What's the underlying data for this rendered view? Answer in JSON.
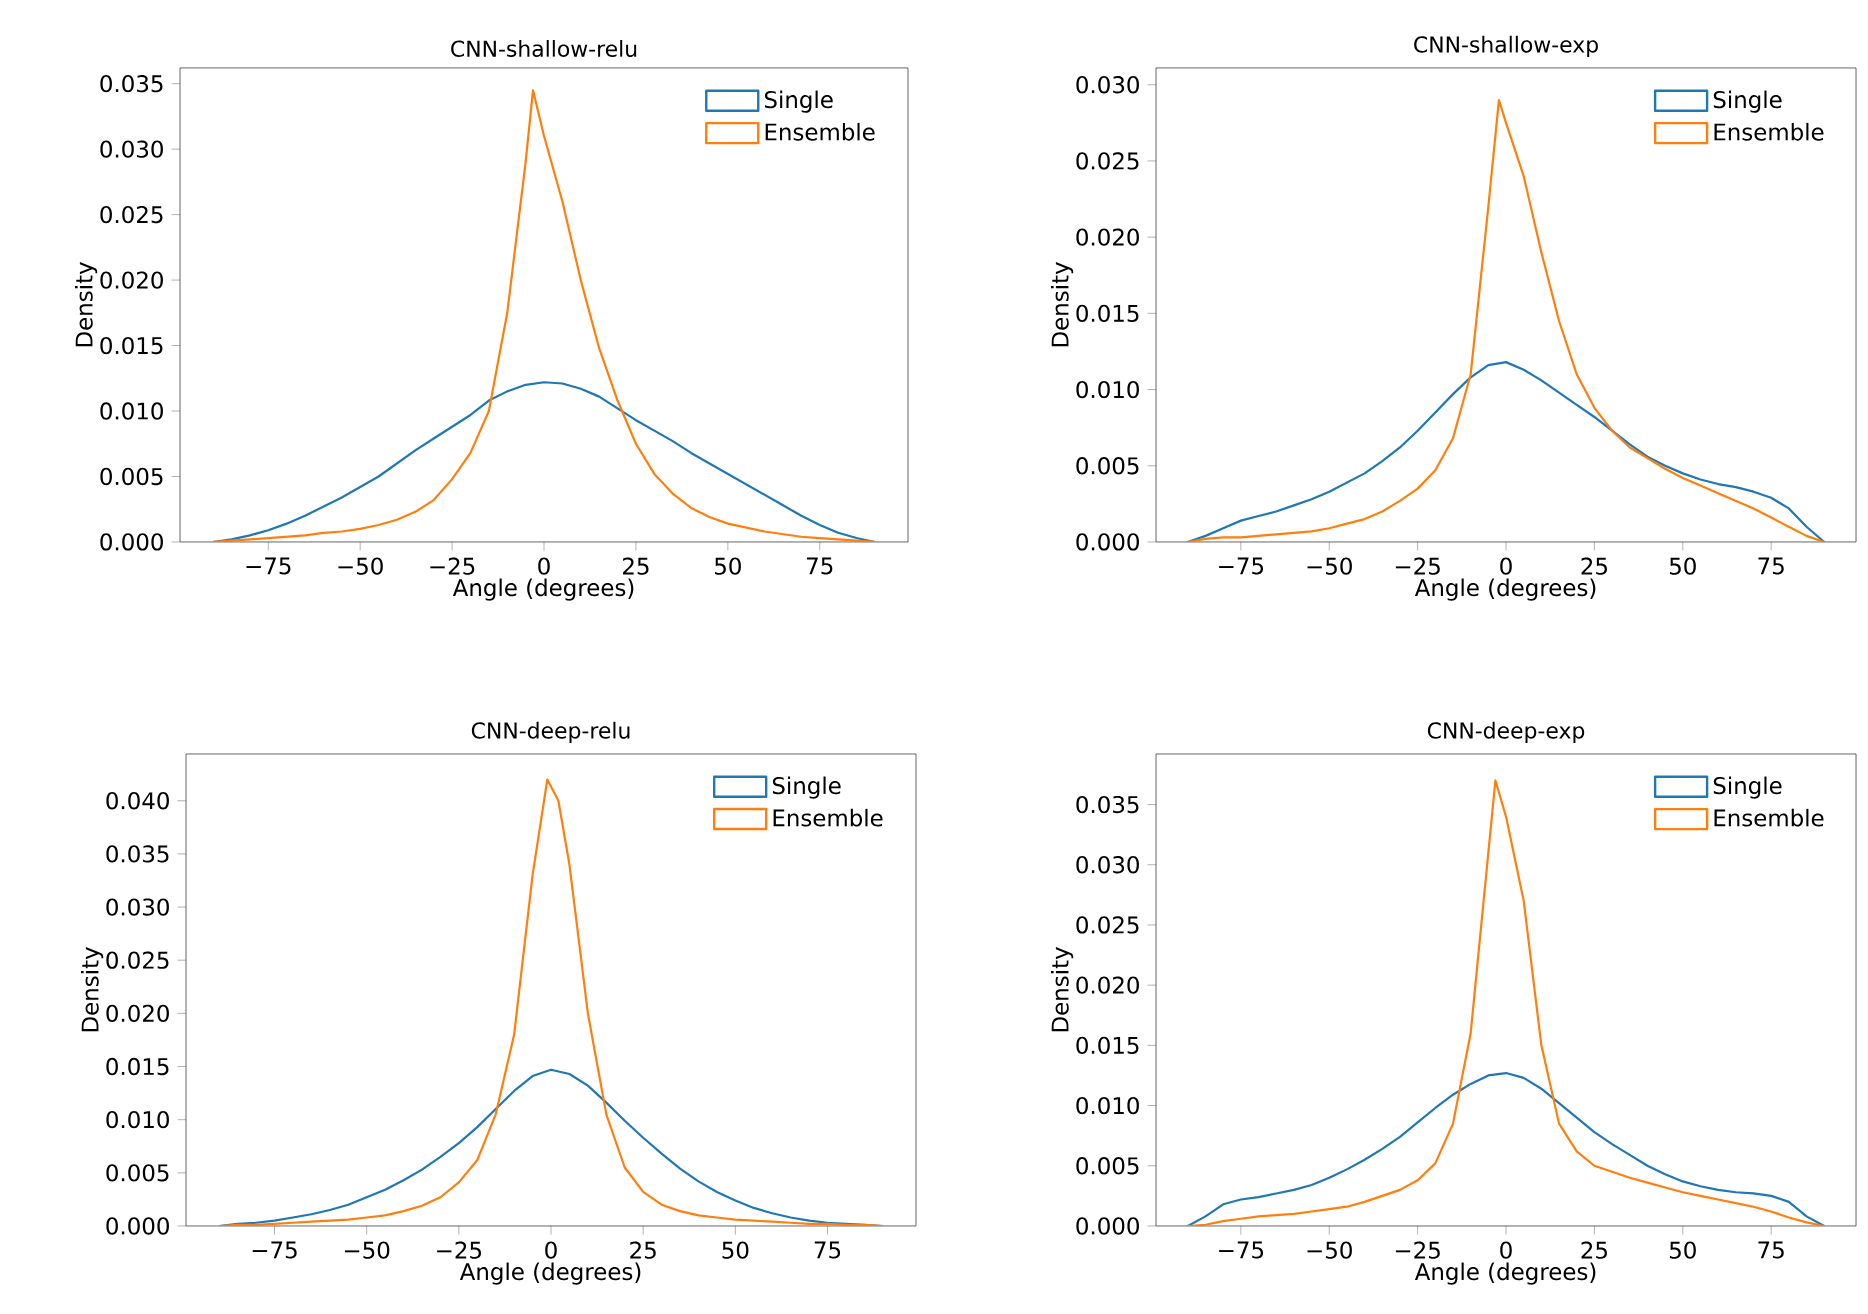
{
  "chart_data": [
    {
      "type": "line",
      "title": "CNN-shallow-relu",
      "xlabel": "Angle (degrees)",
      "ylabel": "Density",
      "legend": "top right",
      "grid": false,
      "marker": "none",
      "line_style": "solid",
      "xlim": [
        -99,
        99
      ],
      "ylim": [
        0,
        0.0362
      ],
      "xticks": [
        {
          "value": -75,
          "label": "−75"
        },
        {
          "value": -50,
          "label": "−50"
        },
        {
          "value": -25,
          "label": "−25"
        },
        0,
        25,
        50,
        75
      ],
      "yticks": [
        {
          "value": 0,
          "label": "0.000"
        },
        {
          "value": 0.005,
          "label": "0.005"
        },
        {
          "value": 0.01,
          "label": "0.010"
        },
        {
          "value": 0.015,
          "label": "0.015"
        },
        {
          "value": 0.02,
          "label": "0.020"
        },
        {
          "value": 0.025,
          "label": "0.025"
        },
        {
          "value": 0.03,
          "label": "0.030"
        },
        {
          "value": 0.035,
          "label": "0.035"
        }
      ],
      "series": [
        {
          "name": "Single",
          "color": "#1f77b4",
          "x": [
            -90,
            -85,
            -80,
            -75,
            -70,
            -65,
            -60,
            -55,
            -50,
            -45,
            -40,
            -35,
            -30,
            -25,
            -20,
            -15,
            -10,
            -5,
            0,
            5,
            10,
            15,
            20,
            25,
            30,
            35,
            40,
            45,
            50,
            55,
            60,
            65,
            70,
            75,
            80,
            85,
            90
          ],
          "values": [
            0,
            0.0002,
            0.0005,
            0.0009,
            0.0014,
            0.002,
            0.0027,
            0.0034,
            0.0042,
            0.005,
            0.006,
            0.007,
            0.0079,
            0.0088,
            0.0097,
            0.0108,
            0.0115,
            0.012,
            0.0122,
            0.0121,
            0.0117,
            0.0111,
            0.0102,
            0.0093,
            0.0085,
            0.0077,
            0.0068,
            0.006,
            0.0052,
            0.0044,
            0.0036,
            0.0028,
            0.002,
            0.0013,
            0.0007,
            0.0003,
            0
          ]
        },
        {
          "name": "Ensemble",
          "color": "#ff7f0e",
          "x": [
            -90,
            -85,
            -80,
            -75,
            -70,
            -65,
            -60,
            -55,
            -50,
            -45,
            -40,
            -35,
            -30,
            -25,
            -20,
            -15,
            -10,
            -5,
            -3,
            0,
            5,
            10,
            15,
            20,
            25,
            30,
            35,
            40,
            45,
            50,
            55,
            60,
            65,
            70,
            75,
            80,
            85,
            90
          ],
          "values": [
            0,
            0.0001,
            0.0002,
            0.0003,
            0.0004,
            0.0005,
            0.0007,
            0.0008,
            0.001,
            0.0013,
            0.0017,
            0.0023,
            0.0032,
            0.0048,
            0.0068,
            0.01,
            0.0175,
            0.029,
            0.0345,
            0.031,
            0.026,
            0.02,
            0.0148,
            0.0108,
            0.0075,
            0.0052,
            0.0037,
            0.0026,
            0.0019,
            0.0014,
            0.0011,
            0.0008,
            0.0006,
            0.0004,
            0.0003,
            0.0002,
            0.0001,
            0
          ]
        }
      ]
    },
    {
      "type": "line",
      "title": "CNN-shallow-exp",
      "xlabel": "Angle (degrees)",
      "ylabel": "Density",
      "legend": "top right",
      "grid": false,
      "marker": "none",
      "line_style": "solid",
      "xlim": [
        -99,
        99
      ],
      "ylim": [
        0,
        0.0311
      ],
      "xticks": [
        {
          "value": -75,
          "label": "−75"
        },
        {
          "value": -50,
          "label": "−50"
        },
        {
          "value": -25,
          "label": "−25"
        },
        0,
        25,
        50,
        75
      ],
      "yticks": [
        {
          "value": 0,
          "label": "0.000"
        },
        {
          "value": 0.005,
          "label": "0.005"
        },
        {
          "value": 0.01,
          "label": "0.010"
        },
        {
          "value": 0.015,
          "label": "0.015"
        },
        {
          "value": 0.02,
          "label": "0.020"
        },
        {
          "value": 0.025,
          "label": "0.025"
        },
        {
          "value": 0.03,
          "label": "0.030"
        }
      ],
      "series": [
        {
          "name": "Single",
          "color": "#1f77b4",
          "x": [
            -90,
            -85,
            -80,
            -75,
            -70,
            -65,
            -60,
            -55,
            -50,
            -45,
            -40,
            -35,
            -30,
            -25,
            -20,
            -15,
            -10,
            -5,
            0,
            5,
            10,
            15,
            20,
            25,
            30,
            35,
            40,
            45,
            50,
            55,
            60,
            65,
            70,
            75,
            80,
            85,
            90
          ],
          "values": [
            0,
            0.0004,
            0.0009,
            0.0014,
            0.0017,
            0.002,
            0.0024,
            0.0028,
            0.0033,
            0.0039,
            0.0045,
            0.0053,
            0.0062,
            0.0073,
            0.0085,
            0.0097,
            0.0108,
            0.0116,
            0.0118,
            0.0113,
            0.0106,
            0.0098,
            0.009,
            0.0082,
            0.0073,
            0.0064,
            0.0056,
            0.005,
            0.0045,
            0.0041,
            0.0038,
            0.0036,
            0.0033,
            0.0029,
            0.0022,
            0.001,
            0
          ]
        },
        {
          "name": "Ensemble",
          "color": "#ff7f0e",
          "x": [
            -90,
            -85,
            -80,
            -75,
            -70,
            -65,
            -60,
            -55,
            -50,
            -45,
            -40,
            -35,
            -30,
            -25,
            -20,
            -15,
            -10,
            -5,
            -2,
            0,
            5,
            10,
            15,
            20,
            25,
            30,
            35,
            40,
            45,
            50,
            55,
            60,
            65,
            70,
            75,
            80,
            85,
            90
          ],
          "values": [
            0,
            0.0002,
            0.0003,
            0.0003,
            0.0004,
            0.0005,
            0.0006,
            0.0007,
            0.0009,
            0.0012,
            0.0015,
            0.002,
            0.0027,
            0.0035,
            0.0047,
            0.0068,
            0.011,
            0.022,
            0.029,
            0.0275,
            0.024,
            0.019,
            0.0145,
            0.011,
            0.0088,
            0.0073,
            0.0062,
            0.0055,
            0.0048,
            0.0042,
            0.0037,
            0.0032,
            0.0027,
            0.0022,
            0.0016,
            0.001,
            0.0004,
            0
          ]
        }
      ]
    },
    {
      "type": "line",
      "title": "CNN-deep-relu",
      "xlabel": "Angle (degrees)",
      "ylabel": "Density",
      "legend": "top right",
      "grid": false,
      "marker": "none",
      "line_style": "solid",
      "xlim": [
        -99,
        99
      ],
      "ylim": [
        0,
        0.0444
      ],
      "xticks": [
        {
          "value": -75,
          "label": "−75"
        },
        {
          "value": -50,
          "label": "−50"
        },
        {
          "value": -25,
          "label": "−25"
        },
        0,
        25,
        50,
        75
      ],
      "yticks": [
        {
          "value": 0,
          "label": "0.000"
        },
        {
          "value": 0.005,
          "label": "0.005"
        },
        {
          "value": 0.01,
          "label": "0.010"
        },
        {
          "value": 0.015,
          "label": "0.015"
        },
        {
          "value": 0.02,
          "label": "0.020"
        },
        {
          "value": 0.025,
          "label": "0.025"
        },
        {
          "value": 0.03,
          "label": "0.030"
        },
        {
          "value": 0.035,
          "label": "0.035"
        },
        {
          "value": 0.04,
          "label": "0.040"
        }
      ],
      "series": [
        {
          "name": "Single",
          "color": "#1f77b4",
          "x": [
            -90,
            -85,
            -80,
            -75,
            -70,
            -65,
            -60,
            -55,
            -50,
            -45,
            -40,
            -35,
            -30,
            -25,
            -20,
            -15,
            -10,
            -5,
            0,
            5,
            10,
            15,
            20,
            25,
            30,
            35,
            40,
            45,
            50,
            55,
            60,
            65,
            70,
            75,
            80,
            85,
            90
          ],
          "values": [
            0,
            0.0002,
            0.0003,
            0.0005,
            0.0008,
            0.0011,
            0.0015,
            0.002,
            0.0027,
            0.0034,
            0.0043,
            0.0053,
            0.0065,
            0.0078,
            0.0093,
            0.011,
            0.0127,
            0.0141,
            0.0147,
            0.0143,
            0.0132,
            0.0116,
            0.0099,
            0.0083,
            0.0068,
            0.0054,
            0.0042,
            0.0032,
            0.0024,
            0.0017,
            0.0012,
            0.0008,
            0.0005,
            0.0003,
            0.0002,
            0.0001,
            0
          ]
        },
        {
          "name": "Ensemble",
          "color": "#ff7f0e",
          "x": [
            -90,
            -85,
            -80,
            -75,
            -70,
            -65,
            -60,
            -55,
            -50,
            -45,
            -40,
            -35,
            -30,
            -25,
            -20,
            -15,
            -10,
            -5,
            -1,
            2,
            5,
            10,
            15,
            20,
            25,
            30,
            35,
            40,
            45,
            50,
            55,
            60,
            65,
            70,
            75,
            80,
            85,
            90
          ],
          "values": [
            0,
            0.0001,
            0.0001,
            0.0002,
            0.0003,
            0.0004,
            0.0005,
            0.0006,
            0.0008,
            0.001,
            0.0014,
            0.0019,
            0.0027,
            0.0041,
            0.0062,
            0.0105,
            0.018,
            0.033,
            0.042,
            0.04,
            0.034,
            0.02,
            0.0105,
            0.0055,
            0.0032,
            0.002,
            0.0014,
            0.001,
            0.0008,
            0.0006,
            0.0005,
            0.0004,
            0.0003,
            0.0002,
            0.0002,
            0.0001,
            0.0001,
            0
          ]
        }
      ]
    },
    {
      "type": "line",
      "title": "CNN-deep-exp",
      "xlabel": "Angle (degrees)",
      "ylabel": "Density",
      "legend": "top right",
      "grid": false,
      "marker": "none",
      "line_style": "solid",
      "xlim": [
        -99,
        99
      ],
      "ylim": [
        0,
        0.0392
      ],
      "xticks": [
        {
          "value": -75,
          "label": "−75"
        },
        {
          "value": -50,
          "label": "−50"
        },
        {
          "value": -25,
          "label": "−25"
        },
        0,
        25,
        50,
        75
      ],
      "yticks": [
        {
          "value": 0,
          "label": "0.000"
        },
        {
          "value": 0.005,
          "label": "0.005"
        },
        {
          "value": 0.01,
          "label": "0.010"
        },
        {
          "value": 0.015,
          "label": "0.015"
        },
        {
          "value": 0.02,
          "label": "0.020"
        },
        {
          "value": 0.025,
          "label": "0.025"
        },
        {
          "value": 0.03,
          "label": "0.030"
        },
        {
          "value": 0.035,
          "label": "0.035"
        }
      ],
      "series": [
        {
          "name": "Single",
          "color": "#1f77b4",
          "x": [
            -90,
            -85,
            -80,
            -75,
            -70,
            -65,
            -60,
            -55,
            -50,
            -45,
            -40,
            -35,
            -30,
            -25,
            -20,
            -15,
            -10,
            -5,
            0,
            5,
            10,
            15,
            20,
            25,
            30,
            35,
            40,
            45,
            50,
            55,
            60,
            65,
            70,
            75,
            80,
            85,
            90
          ],
          "values": [
            0,
            0.0008,
            0.0018,
            0.0022,
            0.0024,
            0.0027,
            0.003,
            0.0034,
            0.004,
            0.0047,
            0.0055,
            0.0064,
            0.0074,
            0.0086,
            0.0098,
            0.0109,
            0.0118,
            0.0125,
            0.0127,
            0.0123,
            0.0114,
            0.0102,
            0.009,
            0.0078,
            0.0068,
            0.0059,
            0.005,
            0.0043,
            0.0037,
            0.0033,
            0.003,
            0.0028,
            0.0027,
            0.0025,
            0.002,
            0.0008,
            0
          ]
        },
        {
          "name": "Ensemble",
          "color": "#ff7f0e",
          "x": [
            -90,
            -85,
            -80,
            -75,
            -70,
            -65,
            -60,
            -55,
            -50,
            -45,
            -40,
            -35,
            -30,
            -25,
            -20,
            -15,
            -10,
            -5,
            -3,
            0,
            5,
            10,
            15,
            20,
            25,
            30,
            35,
            40,
            45,
            50,
            55,
            60,
            65,
            70,
            75,
            80,
            85,
            90
          ],
          "values": [
            0,
            0.0001,
            0.0004,
            0.0006,
            0.0008,
            0.0009,
            0.001,
            0.0012,
            0.0014,
            0.0016,
            0.002,
            0.0025,
            0.003,
            0.0038,
            0.0052,
            0.0085,
            0.016,
            0.031,
            0.037,
            0.034,
            0.027,
            0.015,
            0.0085,
            0.0062,
            0.005,
            0.0045,
            0.004,
            0.0036,
            0.0032,
            0.0028,
            0.0025,
            0.0022,
            0.0019,
            0.0016,
            0.0012,
            0.0007,
            0.0003,
            0
          ]
        }
      ]
    }
  ]
}
